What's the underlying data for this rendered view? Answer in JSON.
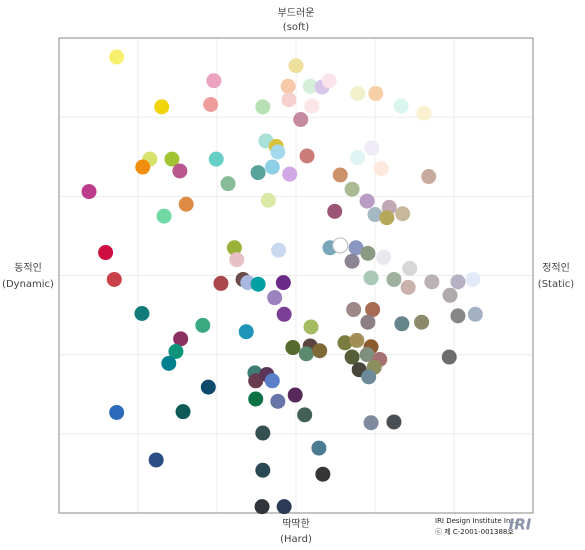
{
  "chart_data": {
    "type": "scatter",
    "labels": {
      "top": "부드러운",
      "top_en": "(soft)",
      "bottom": "딱딱한",
      "bottom_en": "(Hard)",
      "left": "동적인",
      "left_en": "(Dynamic)",
      "right": "정적인",
      "right_en": "(Static)"
    },
    "credit": [
      "IRI Design Institute Inc.",
      "ⓒ 제 C-2001-001388호"
    ],
    "logo": "IRI",
    "xlim": [
      -3,
      3
    ],
    "ylim": [
      -3,
      3
    ],
    "grid_x": [
      -2,
      -1,
      0,
      1,
      2
    ],
    "grid_y": [
      -2,
      -1,
      0,
      1,
      2
    ],
    "grid": true,
    "x": [
      -2.27,
      -1.04,
      0,
      -0.1,
      0.18,
      0.33,
      0.42,
      0.78,
      1.01,
      -1.7,
      -1.08,
      -0.42,
      -0.09,
      0.2,
      1.33,
      1.62,
      0.06,
      -0.38,
      -0.25,
      -0.23,
      0.14,
      0.96,
      0.78,
      -1.85,
      -1.57,
      -1.01,
      -1.94,
      -1.47,
      -0.48,
      -0.3,
      -0.08,
      0.56,
      1.08,
      1.68,
      -0.86,
      0.71,
      -2.62,
      -1.39,
      -0.35,
      0.9,
      1.18,
      1.35,
      0.49,
      1.0,
      1.15,
      -1.67,
      -0.78,
      -0.22,
      -2.41,
      0.43,
      0.56,
      0.76,
      0.91,
      1.11,
      -0.75,
      0.71,
      1.44,
      -2.3,
      -0.95,
      -0.67,
      -0.61,
      -0.48,
      -0.16,
      0.95,
      1.24,
      1.42,
      1.72,
      2.05,
      2.24,
      -0.27,
      1.95,
      -1.95,
      -0.15,
      0.73,
      0.97,
      2.05,
      2.27,
      -1.18,
      0.19,
      0.91,
      1.34,
      1.59,
      -0.63,
      -1.46,
      -1.52,
      -0.04,
      0.18,
      0.13,
      0.3,
      0.62,
      0.77,
      0.95,
      0.71,
      0.9,
      1.06,
      -1.61,
      0.8,
      0.99,
      1.94,
      -0.52,
      -0.51,
      -0.37,
      -0.3,
      0.92,
      -1.11,
      -0.51,
      -0.23,
      -0.01,
      -2.27,
      -1.43,
      0.11,
      0.95,
      1.24,
      -0.42,
      0.29,
      -1.77,
      -0.42,
      0.34,
      -0.43,
      -0.15
    ],
    "values": [
      2.76,
      2.46,
      2.65,
      2.39,
      2.39,
      2.38,
      2.46,
      2.3,
      2.3,
      2.13,
      2.16,
      2.13,
      2.22,
      2.14,
      2.14,
      2.05,
      1.97,
      1.7,
      1.63,
      1.56,
      1.51,
      1.61,
      1.49,
      1.47,
      1.47,
      1.47,
      1.37,
      1.32,
      1.3,
      1.37,
      1.28,
      1.27,
      1.35,
      1.25,
      1.16,
      1.09,
      1.06,
      0.9,
      0.95,
      0.94,
      0.86,
      0.78,
      0.81,
      0.77,
      0.73,
      0.75,
      0.35,
      0.32,
      0.29,
      0.35,
      0.38,
      0.35,
      0.28,
      0.23,
      0.2,
      0.18,
      0.09,
      -0.05,
      -0.1,
      -0.05,
      -0.09,
      -0.11,
      -0.09,
      -0.03,
      -0.05,
      -0.15,
      -0.08,
      -0.08,
      -0.05,
      -0.28,
      -0.25,
      -0.48,
      -0.49,
      -0.43,
      -0.43,
      -0.51,
      -0.49,
      -0.63,
      -0.65,
      -0.59,
      -0.61,
      -0.59,
      -0.71,
      -0.8,
      -0.96,
      -0.91,
      -0.89,
      -0.99,
      -0.95,
      -0.85,
      -0.82,
      -0.9,
      -1.03,
      -1.0,
      -1.06,
      -1.11,
      -1.19,
      -1.16,
      -1.03,
      -1.23,
      -1.33,
      -1.25,
      -1.33,
      -1.28,
      -1.41,
      -1.56,
      -1.59,
      -1.51,
      -1.73,
      -1.72,
      -1.76,
      -1.86,
      -1.85,
      -1.99,
      -2.18,
      -2.33,
      -2.46,
      -2.51,
      -2.92,
      -2.92
    ],
    "colors": [
      "#f7ef6e",
      "#eba3c0",
      "#efe0a0",
      "#f7c9a8",
      "#d5efd8",
      "#d8c5ea",
      "#f9e4ea",
      "#f1f0cc",
      "#f7cfa7",
      "#f0d50a",
      "#ef9c9c",
      "#b8e0b5",
      "#f6d0cf",
      "#fbe5e6",
      "#d8f5ee",
      "#fbf0d0",
      "#c48aa0",
      "#a9e0d8",
      "#d9c23a",
      "#a5d8ec",
      "#cb7b78",
      "#f1eaf9",
      "#def4f5",
      "#d7e36a",
      "#a3c432",
      "#66cfc5",
      "#ef8f0d",
      "#b9578e",
      "#58a39a",
      "#8dcfe4",
      "#d1a7e6",
      "#cd926a",
      "#fde9de",
      "#c8ab9f",
      "#88bc98",
      "#aabb93",
      "#bc3b8b",
      "#dd8b45",
      "#dbe9a6",
      "#b89cc4",
      "#c0a9b3",
      "#c9b79c",
      "#9c5575",
      "#a4b9c2",
      "#b6a85a",
      "#70d9a3",
      "#9ab138",
      "#cad8f0",
      "#cf0d40",
      "#79a8b9",
      "#ffffff",
      "#8a97c2",
      "#8a9a83",
      "#e8e8ee",
      "#e7c0c6",
      "#8d8493",
      "#d7d7d7",
      "#c8414b",
      "#a8484b",
      "#6b4a4c",
      "#a9b8e0",
      "#00a0a2",
      "#6b2a85",
      "#a9c8b6",
      "#9eb19f",
      "#cbb2ad",
      "#bbb2b5",
      "#b7b2c3",
      "#e2e9f7",
      "#9c83bf",
      "#b0aaaa",
      "#117a7a",
      "#7b3f95",
      "#9e8787",
      "#a76b54",
      "#878787",
      "#a4b1c2",
      "#3aa981",
      "#a4bb62",
      "#8e7f86",
      "#65858a",
      "#8d896b",
      "#1e95b8",
      "#8b2f63",
      "#0b9479",
      "#556a2c",
      "#5c4440",
      "#5c8a6e",
      "#7f6936",
      "#7a7d3f",
      "#a18d55",
      "#8b5a2e",
      "#565e39",
      "#7f8f80",
      "#a47272",
      "#00808f",
      "#48453a",
      "#8d8e5e",
      "#6d6d6d",
      "#3f7d74",
      "#6a3a4e",
      "#5a3459",
      "#587fc8",
      "#6d8a99",
      "#0e4a6b",
      "#0c7246",
      "#6875a8",
      "#57285b",
      "#2c6bb9",
      "#0d5a57",
      "#436054",
      "#7f8a9e",
      "#4a4f53",
      "#355050",
      "#4a7b90",
      "#2a4d84",
      "#2b4753",
      "#353535",
      "#313438",
      "#2c3b58"
    ]
  }
}
